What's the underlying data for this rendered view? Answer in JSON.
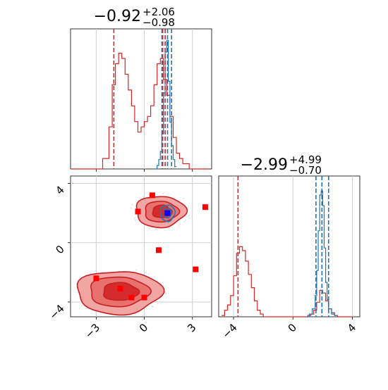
{
  "chart_data": {
    "type": "corner",
    "parameters": [
      {
        "title_main": "−0.92",
        "title_sup": "+2.06",
        "title_sub": "−0.98",
        "range": [
          -4.6,
          4.2
        ],
        "ticks": [
          -3,
          0,
          3
        ],
        "tick_labels": [
          "−3",
          "0",
          "3"
        ],
        "red_quantiles": [
          -1.9,
          1.15,
          1.3
        ],
        "blue_quantiles": [
          1.1,
          1.45,
          1.7
        ]
      },
      {
        "title_main": "−2.99",
        "title_sup": "+4.99",
        "title_sub": "−0.70",
        "range": [
          -5.0,
          4.5
        ],
        "ticks": [
          -4,
          0,
          4
        ],
        "tick_labels": [
          "−4",
          "0",
          "4"
        ],
        "red_quantiles": [
          -3.7,
          1.95
        ],
        "blue_quantiles": [
          1.55,
          1.95,
          2.4
        ]
      }
    ],
    "red_hist_x": {
      "x": [
        -4.6,
        -4.2,
        -3.8,
        -3.4,
        -3.0,
        -2.6,
        -2.2,
        -2.0,
        -1.8,
        -1.6,
        -1.4,
        -1.2,
        -1.0,
        -0.8,
        -0.6,
        -0.4,
        -0.2,
        0.0,
        0.2,
        0.4,
        0.6,
        0.8,
        1.0,
        1.2,
        1.4,
        1.6,
        1.8,
        2.0,
        2.2,
        2.4,
        2.8,
        3.2,
        3.6,
        4.0
      ],
      "counts": [
        0,
        0,
        0,
        0,
        0,
        0.2,
        0.8,
        1.6,
        2.0,
        2.2,
        2.1,
        1.8,
        1.5,
        1.2,
        0.9,
        0.7,
        0.8,
        0.9,
        1.0,
        1.2,
        1.6,
        2.0,
        2.1,
        1.7,
        1.4,
        1.0,
        0.6,
        0.3,
        0.2,
        0.1,
        0,
        0,
        0,
        0
      ]
    },
    "blue_hist_x": {
      "x": [
        0.7,
        0.8,
        0.9,
        1.0,
        1.1,
        1.2,
        1.3,
        1.4,
        1.5,
        1.6,
        1.7,
        1.8,
        1.9,
        2.0
      ],
      "counts": [
        0,
        0.3,
        0.8,
        1.5,
        3.0,
        6.5,
        10.0,
        11.0,
        7.5,
        4.0,
        2.0,
        0.8,
        0.2,
        0
      ]
    },
    "red_hist_y": {
      "x": [
        -4.8,
        -4.6,
        -4.4,
        -4.2,
        -4.0,
        -3.8,
        -3.6,
        -3.4,
        -3.2,
        -3.0,
        -2.8,
        -2.6,
        -2.4,
        -2.2,
        -2.0,
        -1.5,
        -1.0,
        -0.5,
        0.0,
        0.5,
        1.0,
        1.2,
        1.4,
        1.6,
        1.8,
        2.0,
        2.2,
        2.4,
        2.6,
        2.8,
        3.0,
        3.5,
        4.0
      ],
      "counts": [
        0.1,
        0.5,
        0.9,
        1.6,
        3.1,
        4.8,
        5.3,
        5.0,
        4.2,
        3.2,
        2.2,
        1.2,
        0.5,
        0.2,
        0,
        0,
        0,
        0,
        0,
        0,
        0.1,
        0.2,
        0.5,
        1.1,
        2.0,
        1.8,
        1.2,
        0.6,
        0.3,
        0.1,
        0,
        0,
        0
      ]
    },
    "blue_hist_y": {
      "x": [
        0.9,
        1.1,
        1.3,
        1.5,
        1.6,
        1.7,
        1.8,
        1.9,
        2.0,
        2.1,
        2.2,
        2.3,
        2.4,
        2.6,
        2.8,
        3.0
      ],
      "counts": [
        0,
        0.2,
        0.6,
        1.6,
        3.5,
        6.5,
        9.2,
        9.5,
        8.4,
        5.2,
        2.6,
        1.3,
        0.6,
        0.2,
        0.1,
        0
      ]
    },
    "red_points": [
      {
        "x": 0.5,
        "y": 3.2
      },
      {
        "x": -0.4,
        "y": 2.1
      },
      {
        "x": 1.4,
        "y": 2.0
      },
      {
        "x": 3.8,
        "y": 2.4
      },
      {
        "x": 0.9,
        "y": -0.5
      },
      {
        "x": 3.2,
        "y": -1.8
      },
      {
        "x": -3.0,
        "y": -2.4
      },
      {
        "x": -1.5,
        "y": -3.1
      },
      {
        "x": -0.8,
        "y": -3.7
      },
      {
        "x": 0.0,
        "y": -3.7
      }
    ],
    "blue_point": {
      "x": 1.45,
      "y": 2.0
    },
    "colors": {
      "red": "#d62728",
      "red_dark": "#c62025",
      "red_fill_outer": "#f2a6a4",
      "red_fill_inner": "#e8706d",
      "red_fill_core": "#d42c2c",
      "blue": "#1f77b4",
      "blue_marker": "#0000ff"
    },
    "grid": true
  }
}
